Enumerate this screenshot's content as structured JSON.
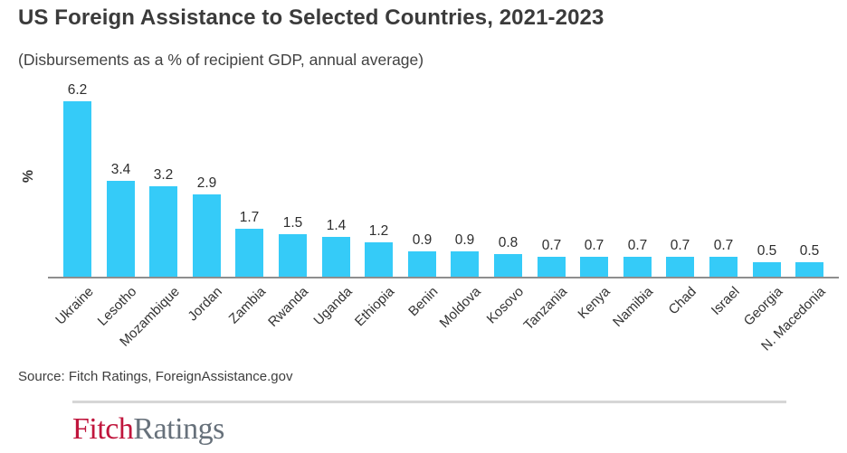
{
  "chart_data": {
    "type": "bar",
    "title": "US Foreign Assistance to Selected Countries, 2021-2023",
    "subtitle": "(Disbursements as a % of recipient GDP, annual average)",
    "ylabel": "%",
    "xlabel": "",
    "categories": [
      "Ukraine",
      "Lesotho",
      "Mozambique",
      "Jordan",
      "Zambia",
      "Rwanda",
      "Uganda",
      "Ethiopia",
      "Benin",
      "Moldova",
      "Kosovo",
      "Tanzania",
      "Kenya",
      "Namibia",
      "Chad",
      "Israel",
      "Georgia",
      "N. Macedonia"
    ],
    "values": [
      6.2,
      3.4,
      3.2,
      2.9,
      1.7,
      1.5,
      1.4,
      1.2,
      0.9,
      0.9,
      0.8,
      0.7,
      0.7,
      0.7,
      0.7,
      0.7,
      0.5,
      0.5
    ],
    "value_labels": [
      "6.2",
      "3.4",
      "3.2",
      "2.9",
      "1.7",
      "1.5",
      "1.4",
      "1.2",
      "0.9",
      "0.9",
      "0.8",
      "0.7",
      "0.7",
      "0.7",
      "0.7",
      "0.7",
      "0.5",
      "0.5"
    ],
    "ylim": [
      0,
      6.5
    ],
    "grid": false,
    "legend": false,
    "bar_color": "#35CBF8",
    "axis_line_color": "#8E8E8E"
  },
  "footer": {
    "source": "Source: Fitch Ratings, ForeignAssistance.gov",
    "logo": {
      "text_primary": "Fitch",
      "text_secondary": "Ratings",
      "color_primary": "#C0153C",
      "color_secondary": "#67717B"
    }
  }
}
